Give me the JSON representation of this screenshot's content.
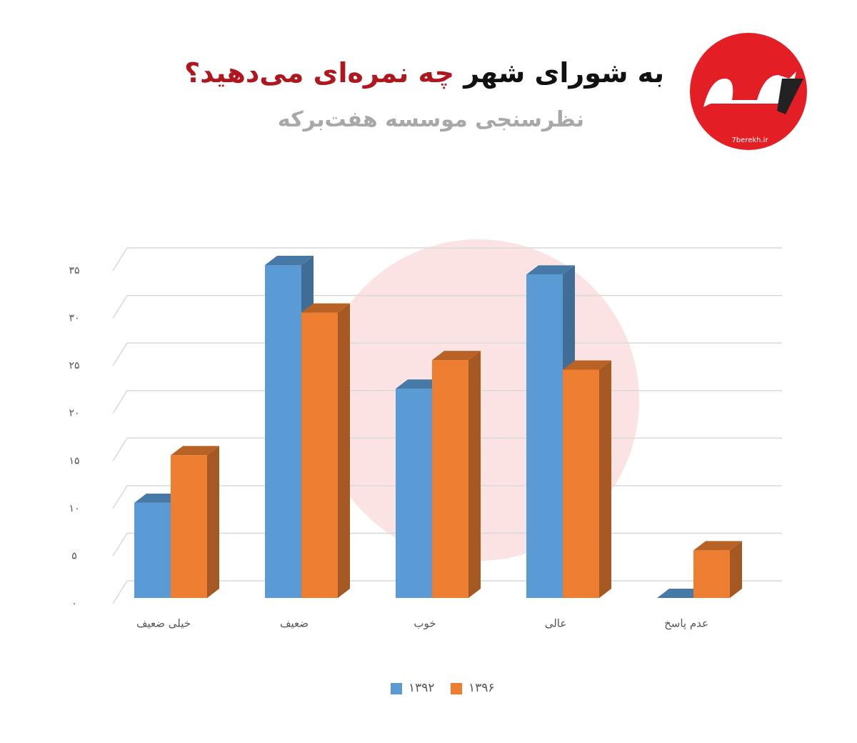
{
  "title_part1": "به شورای شهر",
  "title_part2": "چه نمره‌ای می‌دهید؟",
  "subtitle": "نظرسنجی موسسه هفت‌برکه",
  "logo_url": "7berekh.ir",
  "chart_data": {
    "type": "bar3d",
    "categories": [
      "خیلی ضعیف",
      "ضعیف",
      "خوب",
      "عالی",
      "عدم پاسخ"
    ],
    "series": [
      {
        "name": "۱۳۹۲",
        "color": "#5b9bd5",
        "values": [
          10,
          35,
          22,
          34,
          0
        ]
      },
      {
        "name": "۱۳۹۶",
        "color": "#ed7d31",
        "values": [
          15,
          30,
          25,
          24,
          5
        ]
      }
    ],
    "ylim": [
      0,
      35
    ],
    "yticks": [
      {
        "value": 0,
        "label": "۰"
      },
      {
        "value": 5,
        "label": "۵"
      },
      {
        "value": 10,
        "label": "۱۰"
      },
      {
        "value": 15,
        "label": "۱۵"
      },
      {
        "value": 20,
        "label": "۲۰"
      },
      {
        "value": 25,
        "label": "۲۵"
      },
      {
        "value": 30,
        "label": "۳۰"
      },
      {
        "value": 35,
        "label": "۳۵"
      }
    ],
    "grid": true
  }
}
